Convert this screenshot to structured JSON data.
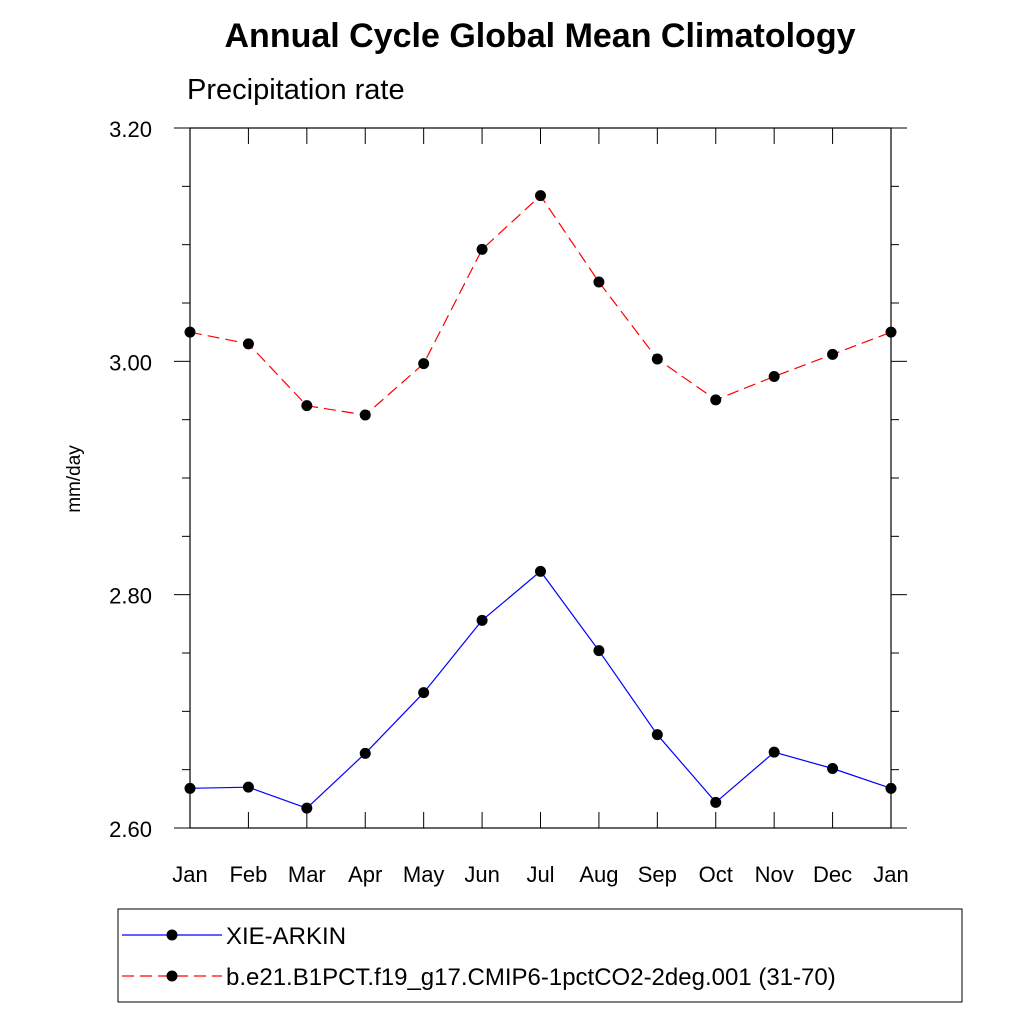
{
  "chart_data": {
    "type": "line",
    "title": "Annual Cycle Global Mean Climatology",
    "subtitle": "Precipitation rate",
    "xlabel": "",
    "ylabel": "mm/day",
    "categories": [
      "Jan",
      "Feb",
      "Mar",
      "Apr",
      "May",
      "Jun",
      "Jul",
      "Aug",
      "Sep",
      "Oct",
      "Nov",
      "Dec",
      "Jan"
    ],
    "ylim": [
      2.6,
      3.2
    ],
    "yticks": [
      2.6,
      2.8,
      3.0,
      3.2
    ],
    "ytick_labels": [
      "2.60",
      "2.80",
      "3.00",
      "3.20"
    ],
    "series": [
      {
        "name": "XIE-ARKIN",
        "color": "#0000ff",
        "style": "solid",
        "marker": "circle",
        "values": [
          2.634,
          2.635,
          2.617,
          2.664,
          2.716,
          2.778,
          2.82,
          2.752,
          2.68,
          2.622,
          2.665,
          2.651,
          2.634
        ]
      },
      {
        "name": "b.e21.B1PCT.f19_g17.CMIP6-1pctCO2-2deg.001 (31-70)",
        "color": "#ff0000",
        "style": "dashed",
        "marker": "circle",
        "values": [
          3.025,
          3.015,
          2.962,
          2.954,
          2.998,
          3.096,
          3.142,
          3.068,
          3.002,
          2.967,
          2.987,
          3.006,
          3.025
        ]
      }
    ],
    "legend_position": "bottom"
  }
}
